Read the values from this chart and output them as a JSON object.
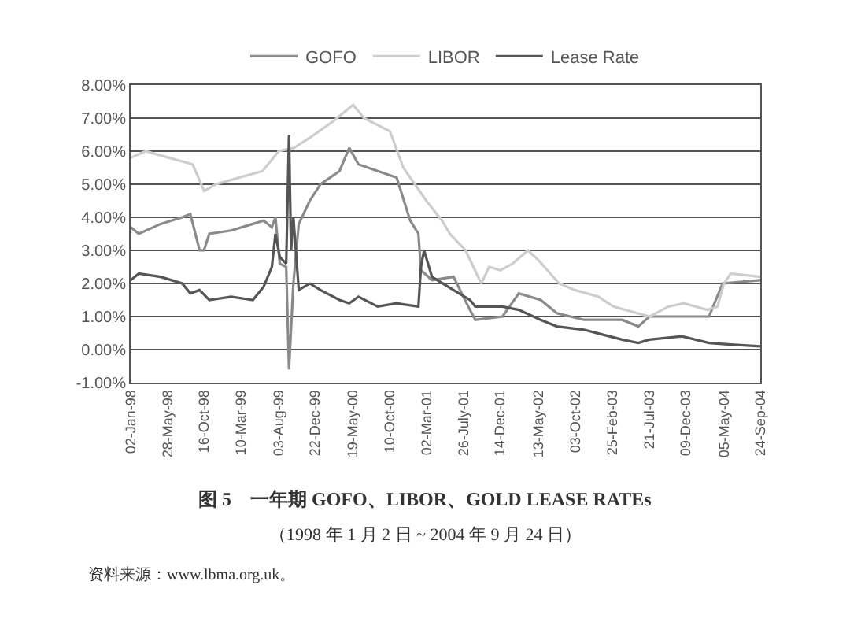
{
  "chart_data": {
    "type": "line",
    "title": "图 5　一年期 GOFO、LIBOR、GOLD LEASE RATEs",
    "subtitle": "（1998 年 1 月 2 日 ~ 2004 年 9 月 24 日）",
    "annotations": [
      "资料来源：www.lbma.org.uk。"
    ],
    "legend": "top",
    "grid": "y",
    "marker": "none",
    "line_style": "solid",
    "xlim": [
      "1998-01-02",
      "2004-09-24"
    ],
    "xticks": [
      {
        "value": "1998-01-02",
        "label": "02-Jan-98"
      },
      {
        "value": "1998-05-28",
        "label": "28-May-98"
      },
      {
        "value": "1998-10-16",
        "label": "16-Oct-98"
      },
      {
        "value": "1999-03-10",
        "label": "10-Mar-99"
      },
      {
        "value": "1999-08-03",
        "label": "03-Aug-99"
      },
      {
        "value": "1999-12-22",
        "label": "22-Dec-99"
      },
      {
        "value": "2000-05-19",
        "label": "19-May-00"
      },
      {
        "value": "2000-10-10",
        "label": "10-Oct-00"
      },
      {
        "value": "2001-03-02",
        "label": "02-Mar-01"
      },
      {
        "value": "2001-07-26",
        "label": "26-July-01"
      },
      {
        "value": "2001-12-14",
        "label": "14-Dec-01"
      },
      {
        "value": "2002-05-13",
        "label": "13-May-02"
      },
      {
        "value": "2002-10-03",
        "label": "03-Oct-02"
      },
      {
        "value": "2003-02-25",
        "label": "25-Feb-03"
      },
      {
        "value": "2003-07-21",
        "label": "21-Jul-03"
      },
      {
        "value": "2003-12-09",
        "label": "09-Dec-03"
      },
      {
        "value": "2004-05-05",
        "label": "05-May-04"
      },
      {
        "value": "2004-09-24",
        "label": "24-Sep-04"
      }
    ],
    "ylim": [
      -1,
      8
    ],
    "yticks": [
      {
        "value": -1,
        "label": "-1.00%"
      },
      {
        "value": 0,
        "label": "0.00%"
      },
      {
        "value": 1,
        "label": "1.00%"
      },
      {
        "value": 2,
        "label": "2.00%"
      },
      {
        "value": 3,
        "label": "3.00%"
      },
      {
        "value": 4,
        "label": "4.00%"
      },
      {
        "value": 5,
        "label": "5.00%"
      },
      {
        "value": 6,
        "label": "6.00%"
      },
      {
        "value": 7,
        "label": "7.00%"
      },
      {
        "value": 8,
        "label": "8.00%"
      }
    ],
    "series": [
      {
        "name": "GOFO",
        "color": "#8a8a8a",
        "x": [
          "1998-01-02",
          "1998-02-03",
          "1998-04-29",
          "1998-07-22",
          "1998-08-23",
          "1998-09-28",
          "1998-10-15",
          "1998-11-05",
          "1999-01-29",
          "1999-04-24",
          "1999-06-05",
          "1999-07-07",
          "1999-07-21",
          "1999-08-07",
          "1999-09-01",
          "1999-09-12",
          "1999-09-29",
          "1999-10-20",
          "1999-12-02",
          "2000-01-13",
          "2000-03-27",
          "2000-05-04",
          "2000-06-09",
          "2000-08-23",
          "2000-11-05",
          "2000-12-28",
          "2001-01-29",
          "2001-02-08",
          "2001-03-23",
          "2001-06-15",
          "2001-08-18",
          "2001-09-08",
          "2001-12-23",
          "2002-02-25",
          "2002-05-21",
          "2002-07-23",
          "2002-11-06",
          "2003-04-04",
          "2003-06-06",
          "2003-07-19",
          "2003-11-23",
          "2004-03-08",
          "2004-04-30",
          "2004-09-24"
        ],
        "values": [
          3.7,
          3.5,
          3.8,
          4.0,
          4.1,
          3.0,
          3.0,
          3.5,
          3.6,
          3.8,
          3.9,
          3.7,
          4.0,
          2.6,
          2.5,
          -0.6,
          2.0,
          3.8,
          4.5,
          5.0,
          5.4,
          6.1,
          5.6,
          5.4,
          5.2,
          3.9,
          3.5,
          2.4,
          2.1,
          2.2,
          1.2,
          0.9,
          1.0,
          1.7,
          1.5,
          1.1,
          0.9,
          0.9,
          0.7,
          1.0,
          1.0,
          1.0,
          2.0,
          2.1
        ]
      },
      {
        "name": "LIBOR",
        "color": "#cdcdcd",
        "x": [
          "1998-01-02",
          "1998-03-01",
          "1998-06-01",
          "1998-09-01",
          "1998-10-16",
          "1998-12-01",
          "1999-03-01",
          "1999-06-01",
          "1999-08-03",
          "1999-10-01",
          "1999-12-01",
          "2000-03-01",
          "2000-05-19",
          "2000-07-01",
          "2000-10-10",
          "2000-12-01",
          "2001-03-01",
          "2001-05-01",
          "2001-06-01",
          "2001-08-01",
          "2001-10-01",
          "2001-11-01",
          "2001-12-15",
          "2002-02-01",
          "2002-04-01",
          "2002-05-13",
          "2002-08-01",
          "2002-10-01",
          "2003-01-01",
          "2003-03-01",
          "2003-06-01",
          "2003-07-21",
          "2003-10-01",
          "2003-12-01",
          "2004-03-01",
          "2004-04-10",
          "2004-05-05",
          "2004-06-01",
          "2004-09-24"
        ],
        "values": [
          5.8,
          6.0,
          5.8,
          5.6,
          4.8,
          5.0,
          5.2,
          5.4,
          6.0,
          6.1,
          6.4,
          6.9,
          7.4,
          7.0,
          6.6,
          5.5,
          4.5,
          3.9,
          3.5,
          3.0,
          2.0,
          2.5,
          2.4,
          2.6,
          3.0,
          2.7,
          2.0,
          1.8,
          1.6,
          1.3,
          1.1,
          1.0,
          1.3,
          1.4,
          1.2,
          1.3,
          2.0,
          2.3,
          2.2
        ]
      },
      {
        "name": "Lease Rate",
        "color": "#555555",
        "x": [
          "1998-01-02",
          "1998-02-03",
          "1998-04-29",
          "1998-07-22",
          "1998-08-23",
          "1998-09-28",
          "1998-11-05",
          "1999-01-29",
          "1999-04-24",
          "1999-06-05",
          "1999-07-07",
          "1999-07-21",
          "1999-08-07",
          "1999-09-01",
          "1999-09-12",
          "1999-09-20",
          "1999-09-29",
          "1999-10-20",
          "1999-12-02",
          "2000-01-13",
          "2000-03-27",
          "2000-05-04",
          "2000-06-09",
          "2000-08-23",
          "2000-11-05",
          "2001-01-29",
          "2001-02-08",
          "2001-02-20",
          "2001-03-23",
          "2001-06-15",
          "2001-08-18",
          "2001-09-08",
          "2001-12-23",
          "2002-02-25",
          "2002-05-21",
          "2002-07-23",
          "2002-11-06",
          "2003-04-04",
          "2003-06-06",
          "2003-07-19",
          "2003-11-23",
          "2004-03-08",
          "2004-06-01",
          "2004-09-24"
        ],
        "values": [
          2.1,
          2.3,
          2.2,
          2.0,
          1.7,
          1.8,
          1.5,
          1.6,
          1.5,
          1.9,
          2.5,
          3.5,
          2.8,
          2.6,
          6.5,
          3.0,
          4.0,
          1.8,
          2.0,
          1.8,
          1.5,
          1.4,
          1.6,
          1.3,
          1.4,
          1.3,
          2.5,
          3.0,
          2.2,
          1.8,
          1.5,
          1.3,
          1.3,
          1.2,
          0.9,
          0.7,
          0.6,
          0.3,
          0.2,
          0.3,
          0.4,
          0.2,
          0.15,
          0.1
        ]
      }
    ]
  }
}
